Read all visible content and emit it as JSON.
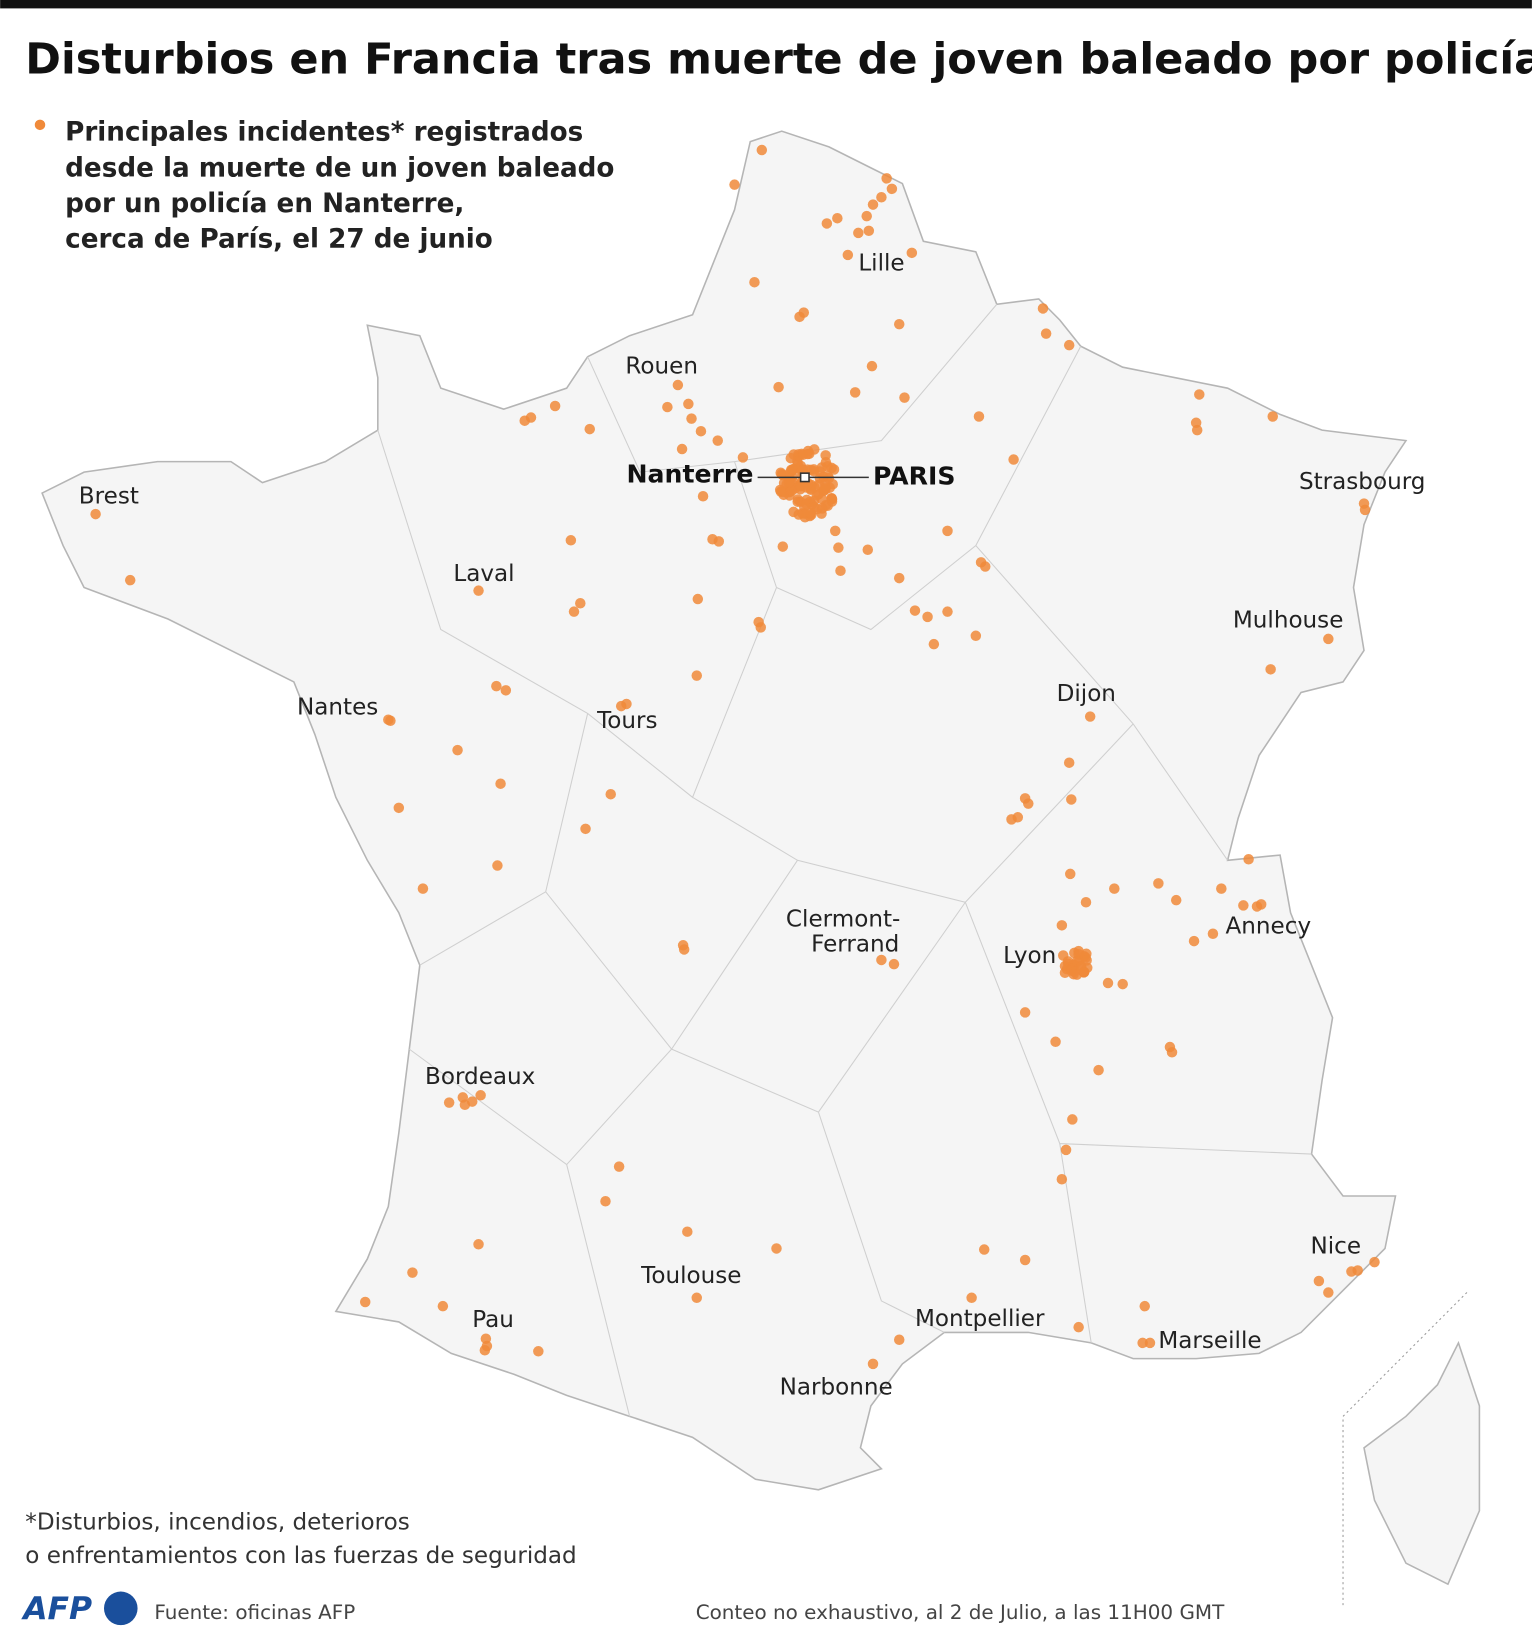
{
  "header": {
    "title": "Disturbios en Francia tras muerte de joven baleado por policía"
  },
  "legend": {
    "lines": [
      "Principales incidentes* registrados",
      "desde la muerte de un joven baleado",
      "por un policía en Nanterre,",
      "cerca de París, el 27 de junio"
    ]
  },
  "map": {
    "paris": "PARIS",
    "nanterre": "Nanterre",
    "cities": [
      [
        "Lille"
      ],
      [
        "Rouen"
      ],
      [
        "Brest"
      ],
      [
        "Strasbourg"
      ],
      [
        "Laval"
      ],
      [
        "Mulhouse"
      ],
      [
        "Nantes"
      ],
      [
        "Tours"
      ],
      [
        "Dijon"
      ],
      [
        "Clermont-",
        "Ferrand"
      ],
      [
        "Lyon"
      ],
      [
        "Annecy"
      ],
      [
        "Bordeaux"
      ],
      [
        "Toulouse"
      ],
      [
        "Pau"
      ],
      [
        "Montpellier"
      ],
      [
        "Marseille"
      ],
      [
        "Nice"
      ],
      [
        "Narbonne"
      ]
    ]
  },
  "footnote": {
    "lines": [
      "*Disturbios, incendios, deterioros",
      "o enfrentamientos con las fuerzas de seguridad"
    ]
  },
  "footer": {
    "logo": "AFP",
    "source": "Fuente: oficinas AFP",
    "note": "Conteo no exhaustivo, al 2 de Julio, a las 11H00 GMT"
  }
}
